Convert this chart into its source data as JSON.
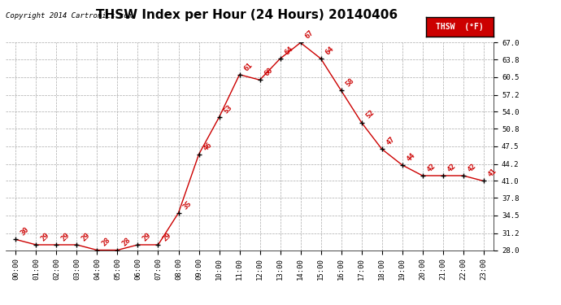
{
  "title": "THSW Index per Hour (24 Hours) 20140406",
  "copyright": "Copyright 2014 Cartronics.com",
  "legend_label": "THSW  (°F)",
  "hours": [
    "00:00",
    "01:00",
    "02:00",
    "03:00",
    "04:00",
    "05:00",
    "06:00",
    "07:00",
    "08:00",
    "09:00",
    "10:00",
    "11:00",
    "12:00",
    "13:00",
    "14:00",
    "15:00",
    "16:00",
    "17:00",
    "18:00",
    "19:00",
    "20:00",
    "21:00",
    "22:00",
    "23:00"
  ],
  "values": [
    30,
    29,
    29,
    29,
    28,
    28,
    29,
    29,
    35,
    46,
    53,
    61,
    60,
    64,
    67,
    64,
    58,
    52,
    47,
    44,
    42,
    42,
    42,
    41
  ],
  "line_color": "#cc0000",
  "marker_color": "#000000",
  "label_color": "#cc0000",
  "bg_color": "#ffffff",
  "grid_color": "#aaaaaa",
  "ylim_min": 28.0,
  "ylim_max": 67.0,
  "yticks": [
    28.0,
    31.2,
    34.5,
    37.8,
    41.0,
    44.2,
    47.5,
    50.8,
    54.0,
    57.2,
    60.5,
    63.8,
    67.0
  ],
  "title_fontsize": 11,
  "label_fontsize": 6.5,
  "tick_fontsize": 6.5,
  "copyright_fontsize": 6.5
}
